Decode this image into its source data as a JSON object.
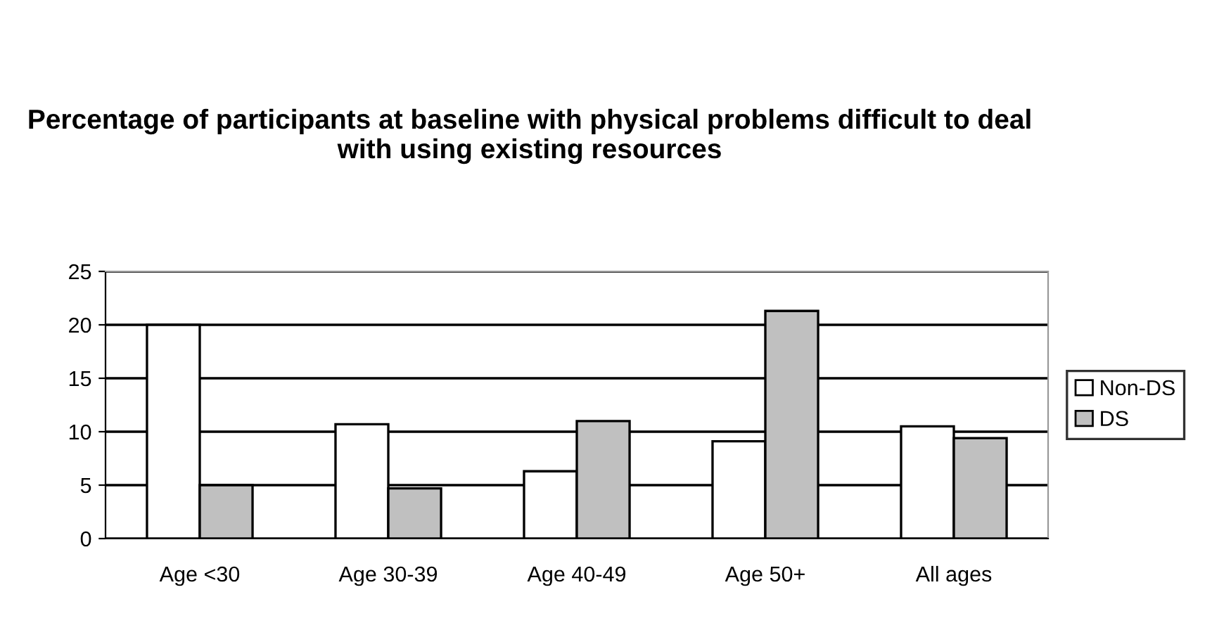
{
  "chart_data": {
    "type": "bar",
    "title": "Percentage of participants at baseline with physical problems difficult to deal with using existing resources",
    "categories": [
      "Age <30",
      "Age 30-39",
      "Age 40-49",
      "Age 50+",
      "All ages"
    ],
    "series": [
      {
        "name": "Non-DS",
        "color": "#ffffff",
        "values": [
          20,
          10.7,
          6.3,
          9.1,
          10.5
        ]
      },
      {
        "name": "DS",
        "color": "#c0c0c0",
        "values": [
          5,
          4.7,
          11.0,
          21.3,
          9.4
        ]
      }
    ],
    "ylim": [
      0,
      25
    ],
    "yticks": [
      0,
      5,
      10,
      15,
      20,
      25
    ],
    "grid": "y",
    "legend": "right"
  }
}
